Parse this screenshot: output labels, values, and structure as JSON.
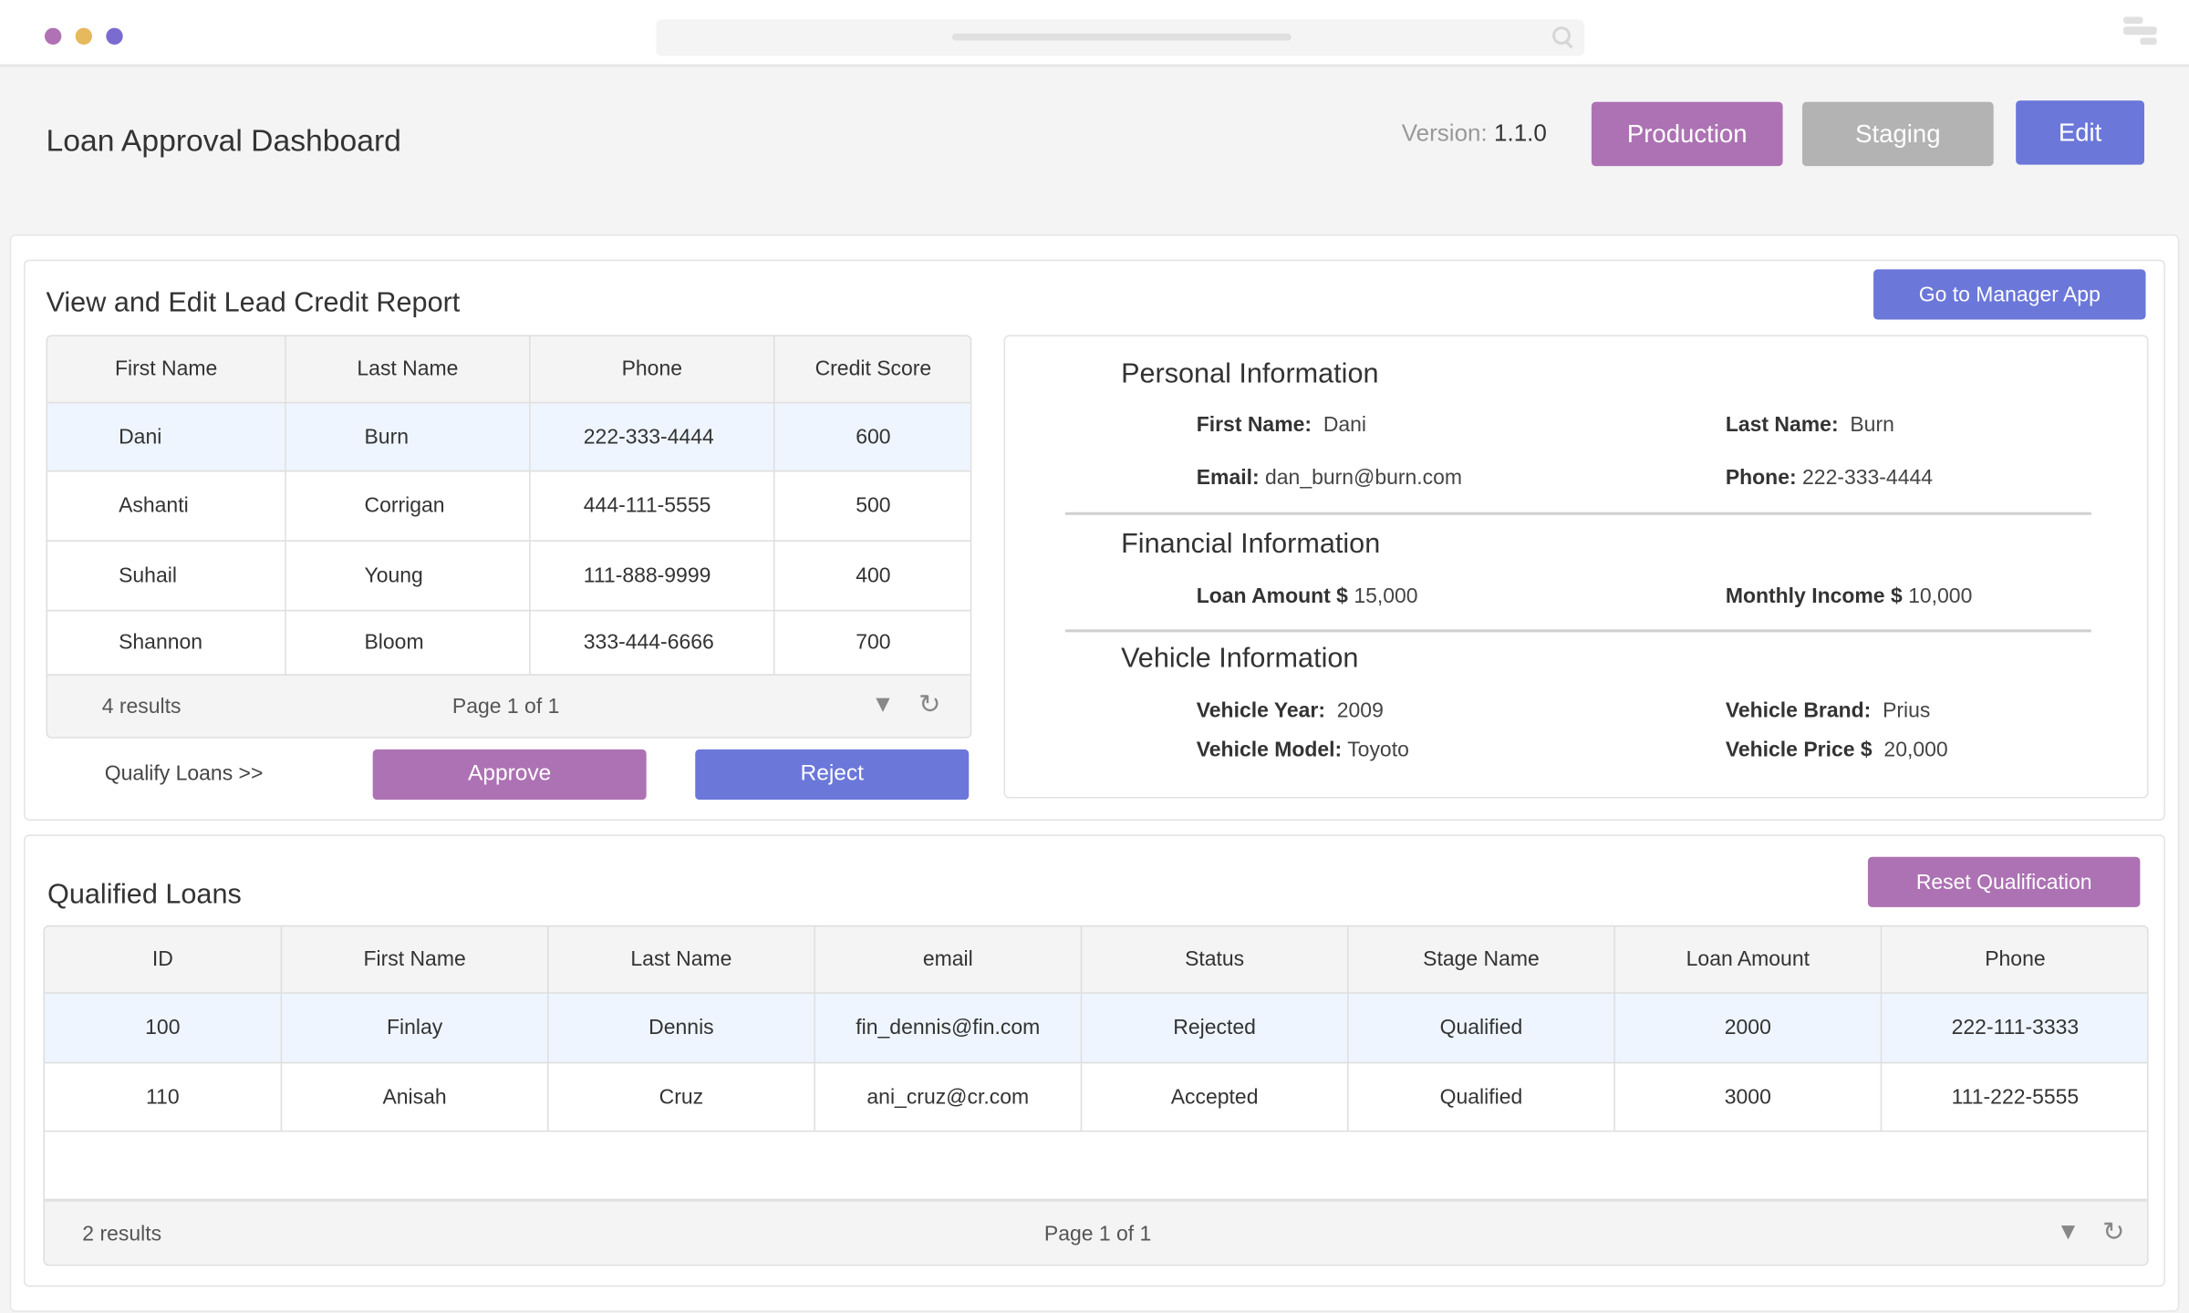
{
  "window": {
    "dot_colors": [
      "#b072b4",
      "#e5b95c",
      "#7a6bd0"
    ],
    "search_icon": "search-icon",
    "menu_icon": "menu-icon"
  },
  "header": {
    "title": "Loan Approval Dashboard",
    "version_label": "Version:",
    "version_value": "1.1.0",
    "production_label": "Production",
    "staging_label": "Staging",
    "edit_label": "Edit"
  },
  "colors": {
    "purple": "#ad72b3",
    "blue": "#6b77d9",
    "gray": "#b3b3b3",
    "selected_row": "#eef5fe"
  },
  "credit_report": {
    "title": "View and Edit Lead Credit Report",
    "manager_button": "Go to Manager App",
    "columns": [
      "First Name",
      "Last Name",
      "Phone",
      "Credit Score"
    ],
    "rows": [
      [
        "Dani",
        "Burn",
        "222-333-4444",
        "600"
      ],
      [
        "Ashanti",
        "Corrigan",
        "444-111-5555",
        "500"
      ],
      [
        "Suhail",
        "Young",
        "111-888-9999",
        "400"
      ],
      [
        "Shannon",
        "Bloom",
        "333-444-6666",
        "700"
      ]
    ],
    "selected_row": 0,
    "results": "4 results",
    "page": "Page 1 of 1",
    "qualify_label": "Qualify Loans >>",
    "approve_label": "Approve",
    "reject_label": "Reject"
  },
  "details": {
    "personal": {
      "title": "Personal Information",
      "first_name_label": "First Name:",
      "first_name": "Dani",
      "last_name_label": "Last Name:",
      "last_name": "Burn",
      "email_label": "Email:",
      "email": "dan_burn@burn.com",
      "phone_label": "Phone:",
      "phone": "222-333-4444"
    },
    "financial": {
      "title": "Financial Information",
      "loan_label": "Loan Amount $",
      "loan": "15,000",
      "income_label": "Monthly Income $",
      "income": "10,000"
    },
    "vehicle": {
      "title": "Vehicle Information",
      "year_label": "Vehicle Year:",
      "year": "2009",
      "brand_label": "Vehicle Brand:",
      "brand": "Prius",
      "model_label": "Vehicle Model:",
      "model": "Toyoto",
      "price_label": "Vehicle Price $",
      "price": "20,000"
    }
  },
  "qualified": {
    "title": "Qualified Loans",
    "reset_button": "Reset Qualification",
    "columns": [
      "ID",
      "First Name",
      "Last Name",
      "email",
      "Status",
      "Stage Name",
      "Loan Amount",
      "Phone"
    ],
    "rows": [
      [
        "100",
        "Finlay",
        "Dennis",
        "fin_dennis@fin.com",
        "Rejected",
        "Qualified",
        "2000",
        "222-111-3333"
      ],
      [
        "110",
        "Anisah",
        "Cruz",
        "ani_cruz@cr.com",
        "Accepted",
        "Qualified",
        "3000",
        "111-222-5555"
      ]
    ],
    "selected_row": 0,
    "results": "2 results",
    "page": "Page 1 of 1"
  }
}
